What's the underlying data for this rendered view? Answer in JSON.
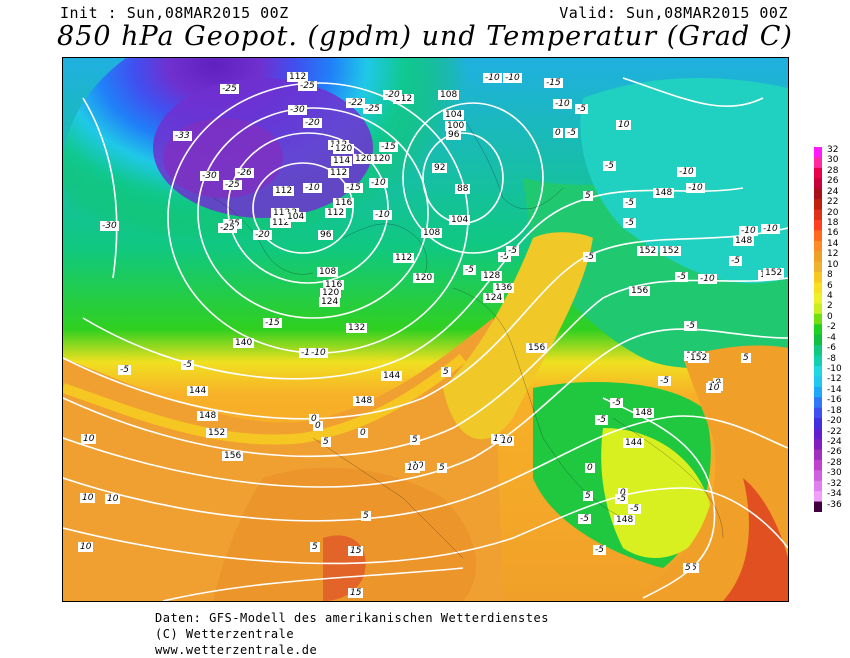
{
  "header": {
    "init": "Init : Sun,08MAR2015 00Z",
    "valid": "Valid: Sun,08MAR2015 00Z",
    "title": "850 hPa Geopot. (gpdm) und Temperatur (Grad C)"
  },
  "colorbar": {
    "ticks": [
      "32",
      "30",
      "28",
      "26",
      "24",
      "22",
      "20",
      "18",
      "16",
      "14",
      "12",
      "10",
      "8",
      "6",
      "4",
      "2",
      "0",
      "-2",
      "-4",
      "-6",
      "-8",
      "-10",
      "-12",
      "-14",
      "-16",
      "-18",
      "-20",
      "-22",
      "-24",
      "-26",
      "-28",
      "-30",
      "-32",
      "-34",
      "-36"
    ],
    "colors": [
      "#ff1aff",
      "#ff2aa0",
      "#e8004a",
      "#c8003a",
      "#a8101a",
      "#c02010",
      "#e03018",
      "#ff4020",
      "#ff6a20",
      "#ff8a28",
      "#f0a028",
      "#f0b030",
      "#f8c820",
      "#f8e020",
      "#f0f028",
      "#c8f020",
      "#70e010",
      "#20d020",
      "#10c040",
      "#10c880",
      "#10d0b0",
      "#20d8e0",
      "#20c8f0",
      "#20a8f8",
      "#3078f8",
      "#4050f0",
      "#4030e0",
      "#6020d0",
      "#8020c0",
      "#a030c0",
      "#c040d0",
      "#d060e0",
      "#e080f0",
      "#f0a0f8",
      "#400040"
    ]
  },
  "map_labels": {
    "geopotential": [
      "112",
      "112",
      "112",
      "112",
      "112",
      "112",
      "108",
      "104",
      "100",
      "96",
      "120",
      "120",
      "120",
      "114",
      "112",
      "112",
      "116",
      "112",
      "104",
      "96",
      "108",
      "116",
      "120",
      "124",
      "132",
      "136",
      "128",
      "140",
      "144",
      "148",
      "144",
      "148",
      "152",
      "156",
      "156",
      "152",
      "148",
      "148",
      "152",
      "152",
      "152",
      "148",
      "148",
      "144",
      "152",
      "156",
      "152",
      "92",
      "88",
      "104",
      "108",
      "112",
      "120",
      "124"
    ],
    "temperature": [
      "-25",
      "-33",
      "-30",
      "-25",
      "-26",
      "-25",
      "-25",
      "-20",
      "-30",
      "-20",
      "-22",
      "-25",
      "-20",
      "-15",
      "-15",
      "-10",
      "-10",
      "-10",
      "-10",
      "-5",
      "-5",
      "-5",
      "-5",
      "-5",
      "-5",
      "-15",
      "-10",
      "-5",
      "-5",
      "0",
      "0",
      "0",
      "5",
      "5",
      "5",
      "5",
      "5",
      "10",
      "10",
      "10",
      "10",
      "10",
      "10",
      "10",
      "15",
      "5",
      "0",
      "-5",
      "-5",
      "-5",
      "-10",
      "-10",
      "-10",
      "-5",
      "5",
      "5",
      "0",
      "-5",
      "-5",
      "-5",
      "10",
      "15",
      "5",
      "10",
      "5",
      "-10",
      "-10",
      "-5",
      "-5",
      "-15",
      "-10",
      "-5",
      "0",
      "5",
      "10",
      "-5",
      "-10",
      "-10",
      "-5",
      "-5",
      "0",
      "5",
      "10",
      "-30",
      "-25"
    ]
  },
  "footer": {
    "line1": "Daten: GFS-Modell des amerikanischen Wetterdienstes",
    "line2": "(C) Wetterzentrale",
    "line3": "www.wetterzentrale.de"
  }
}
